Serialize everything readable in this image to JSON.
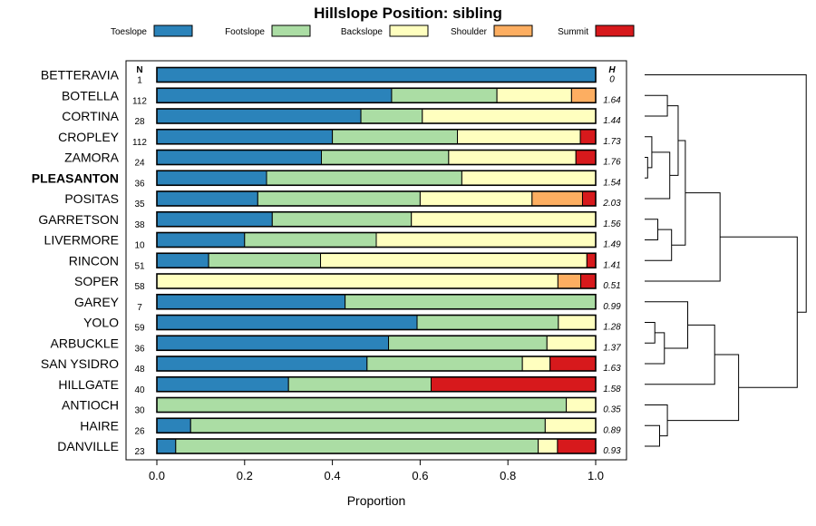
{
  "chart_data": {
    "type": "bar",
    "orientation": "horizontal",
    "stacked": true,
    "title": "Hillslope Position: sibling",
    "xlabel": "Proportion",
    "ylabel": "",
    "xlim": [
      0,
      1
    ],
    "x_ticks": [
      "0.0",
      "0.2",
      "0.4",
      "0.6",
      "0.8",
      "1.0"
    ],
    "legend_position": "top",
    "n_header": "N",
    "h_header": "H",
    "legend": [
      {
        "name": "Toeslope",
        "color": "#2b83ba"
      },
      {
        "name": "Footslope",
        "color": "#abdda4"
      },
      {
        "name": "Backslope",
        "color": "#ffffbf"
      },
      {
        "name": "Shoulder",
        "color": "#fdae61"
      },
      {
        "name": "Summit",
        "color": "#d7191c"
      }
    ],
    "categories": [
      {
        "name": "BETTERAVIA",
        "n": "1",
        "h": "0",
        "bold": false,
        "values": [
          1.0,
          0,
          0,
          0,
          0
        ]
      },
      {
        "name": "BOTELLA",
        "n": "112",
        "h": "1.64",
        "bold": false,
        "values": [
          0.535,
          0.24,
          0.17,
          0.055,
          0
        ]
      },
      {
        "name": "CORTINA",
        "n": "28",
        "h": "1.44",
        "bold": false,
        "values": [
          0.465,
          0.14,
          0.395,
          0,
          0
        ]
      },
      {
        "name": "CROPLEY",
        "n": "112",
        "h": "1.73",
        "bold": false,
        "values": [
          0.4,
          0.285,
          0.28,
          0,
          0.035
        ]
      },
      {
        "name": "ZAMORA",
        "n": "24",
        "h": "1.76",
        "bold": false,
        "values": [
          0.375,
          0.29,
          0.29,
          0,
          0.045
        ]
      },
      {
        "name": "PLEASANTON",
        "n": "36",
        "h": "1.54",
        "bold": true,
        "values": [
          0.25,
          0.445,
          0.305,
          0,
          0
        ]
      },
      {
        "name": "POSITAS",
        "n": "35",
        "h": "2.03",
        "bold": false,
        "values": [
          0.23,
          0.37,
          0.255,
          0.115,
          0.03
        ]
      },
      {
        "name": "GARRETSON",
        "n": "38",
        "h": "1.56",
        "bold": false,
        "values": [
          0.263,
          0.317,
          0.42,
          0,
          0
        ]
      },
      {
        "name": "LIVERMORE",
        "n": "10",
        "h": "1.49",
        "bold": false,
        "values": [
          0.2,
          0.3,
          0.5,
          0,
          0
        ]
      },
      {
        "name": "RINCON",
        "n": "51",
        "h": "1.41",
        "bold": false,
        "values": [
          0.118,
          0.255,
          0.607,
          0,
          0.02
        ]
      },
      {
        "name": "SOPER",
        "n": "58",
        "h": "0.51",
        "bold": false,
        "values": [
          0,
          0,
          0.914,
          0.052,
          0.034
        ]
      },
      {
        "name": "GAREY",
        "n": "7",
        "h": "0.99",
        "bold": false,
        "values": [
          0.429,
          0.571,
          0,
          0,
          0
        ]
      },
      {
        "name": "YOLO",
        "n": "59",
        "h": "1.28",
        "bold": false,
        "values": [
          0.593,
          0.322,
          0.085,
          0,
          0
        ]
      },
      {
        "name": "ARBUCKLE",
        "n": "36",
        "h": "1.37",
        "bold": false,
        "values": [
          0.528,
          0.361,
          0.111,
          0,
          0
        ]
      },
      {
        "name": "SAN YSIDRO",
        "n": "48",
        "h": "1.63",
        "bold": false,
        "values": [
          0.479,
          0.354,
          0.063,
          0,
          0.104
        ]
      },
      {
        "name": "HILLGATE",
        "n": "40",
        "h": "1.58",
        "bold": false,
        "values": [
          0.3,
          0.325,
          0,
          0,
          0.375
        ]
      },
      {
        "name": "ANTIOCH",
        "n": "30",
        "h": "0.35",
        "bold": false,
        "values": [
          0,
          0.933,
          0.067,
          0,
          0
        ]
      },
      {
        "name": "HAIRE",
        "n": "26",
        "h": "0.89",
        "bold": false,
        "values": [
          0.077,
          0.808,
          0.115,
          0,
          0
        ]
      },
      {
        "name": "DANVILLE",
        "n": "23",
        "h": "0.93",
        "bold": false,
        "values": [
          0.043,
          0.826,
          0.044,
          0,
          0.087
        ]
      }
    ],
    "dendrogram": {
      "merges": [
        [
          4,
          5,
          0.05
        ],
        [
          3,
          4,
          0.12
        ],
        [
          7,
          8,
          0.22
        ],
        [
          1,
          2,
          0.38
        ],
        [
          12,
          13,
          0.17
        ],
        [
          17,
          18,
          0.25
        ],
        [
          13,
          14,
          0.33
        ],
        [
          11,
          12,
          0.72
        ],
        [
          16,
          17,
          0.38
        ],
        [
          3,
          6,
          0.42
        ],
        [
          7,
          9,
          0.45
        ],
        [
          1,
          3,
          0.56
        ],
        [
          1,
          7,
          0.68
        ],
        [
          11,
          15,
          1.17
        ],
        [
          1,
          10,
          1.26
        ],
        [
          11,
          16,
          1.57
        ],
        [
          1,
          11,
          2.55
        ],
        [
          0,
          1,
          2.7
        ]
      ]
    }
  }
}
